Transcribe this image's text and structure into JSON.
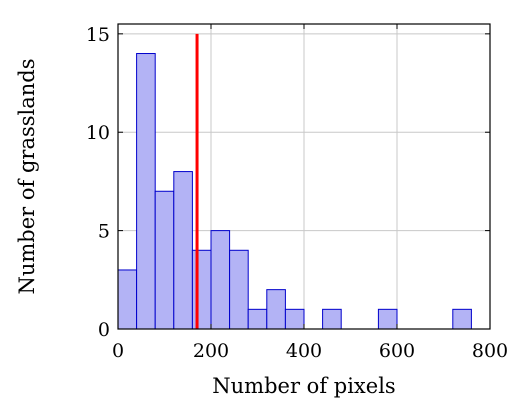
{
  "chart_data": {
    "type": "bar",
    "xlabel": "Number of pixels",
    "ylabel": "Number of grasslands",
    "xlim": [
      0,
      800
    ],
    "ylim": [
      0,
      15.5
    ],
    "xticks": [
      0,
      200,
      400,
      600,
      800
    ],
    "yticks": [
      0,
      5,
      10,
      15
    ],
    "x_tick_labels": [
      "0",
      "200",
      "400",
      "600",
      "800"
    ],
    "y_tick_labels": [
      "0",
      "5",
      "10",
      "15"
    ],
    "grid": true,
    "bin_width": 40,
    "bin_edges": [
      0,
      40,
      80,
      120,
      160,
      200,
      240,
      280,
      320,
      360,
      400,
      440,
      480,
      520,
      560,
      600,
      640,
      680,
      720,
      760,
      800
    ],
    "values": [
      3,
      14,
      7,
      8,
      4,
      5,
      4,
      1,
      2,
      1,
      0,
      1,
      0,
      0,
      1,
      0,
      0,
      0,
      1,
      0
    ],
    "vertical_line": {
      "x": 170,
      "y_top": 15,
      "color": "#ff0000"
    },
    "bar_fill": "#b3b3f5",
    "bar_stroke": "#0000cc"
  }
}
